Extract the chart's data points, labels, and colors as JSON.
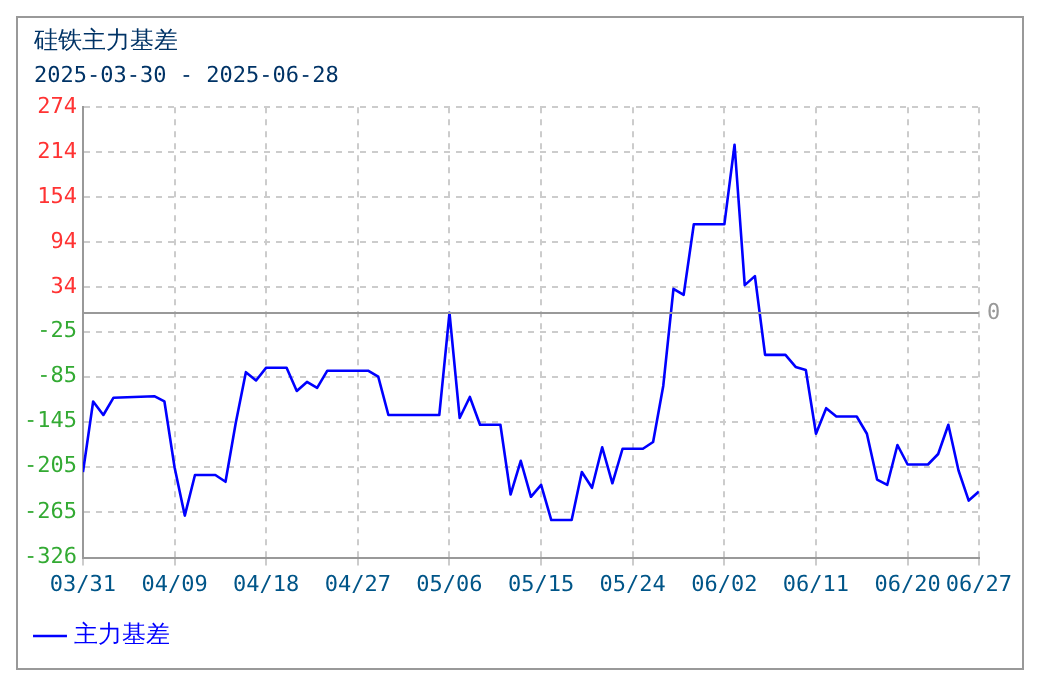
{
  "chart_data": {
    "type": "line",
    "title": "硅铁主力基差",
    "subtitle": "2025-03-30 - 2025-06-28",
    "x": [
      "2025-03-31",
      "2025-04-01",
      "2025-04-02",
      "2025-04-03",
      "2025-04-07",
      "2025-04-08",
      "2025-04-09",
      "2025-04-10",
      "2025-04-11",
      "2025-04-13",
      "2025-04-14",
      "2025-04-15",
      "2025-04-16",
      "2025-04-17",
      "2025-04-18",
      "2025-04-20",
      "2025-04-21",
      "2025-04-22",
      "2025-04-23",
      "2025-04-24",
      "2025-04-28",
      "2025-04-29",
      "2025-04-30",
      "2025-05-05",
      "2025-05-06",
      "2025-05-07",
      "2025-05-08",
      "2025-05-09",
      "2025-05-11",
      "2025-05-12",
      "2025-05-13",
      "2025-05-14",
      "2025-05-15",
      "2025-05-16",
      "2025-05-18",
      "2025-05-19",
      "2025-05-20",
      "2025-05-21",
      "2025-05-22",
      "2025-05-23",
      "2025-05-25",
      "2025-05-26",
      "2025-05-27",
      "2025-05-28",
      "2025-05-29",
      "2025-05-30",
      "2025-06-02",
      "2025-06-03",
      "2025-06-04",
      "2025-06-05",
      "2025-06-06",
      "2025-06-08",
      "2025-06-09",
      "2025-06-10",
      "2025-06-11",
      "2025-06-12",
      "2025-06-13",
      "2025-06-15",
      "2025-06-16",
      "2025-06-17",
      "2025-06-18",
      "2025-06-19",
      "2025-06-20",
      "2025-06-22",
      "2025-06-23",
      "2025-06-24",
      "2025-06-25",
      "2025-06-26",
      "2025-06-27"
    ],
    "series": [
      {
        "name": "主力基差",
        "color": "#0000ff",
        "values": [
          -212,
          -118,
          -136,
          -113,
          -111,
          -118,
          -206,
          -270,
          -216,
          -216,
          -225,
          -147,
          -79,
          -90,
          -73,
          -73,
          -104,
          -92,
          -100,
          -77,
          -77,
          -85,
          -136,
          -136,
          0,
          -140,
          -112,
          -149,
          -149,
          -242,
          -197,
          -245,
          -229,
          -276,
          -276,
          -212,
          -233,
          -179,
          -227,
          -181,
          -181,
          -172,
          -97,
          32,
          24,
          118,
          118,
          224,
          37,
          49,
          -56,
          -56,
          -72,
          -76,
          -161,
          -127,
          -138,
          -138,
          -161,
          -222,
          -229,
          -176,
          -202,
          -202,
          -188,
          -149,
          -210,
          -250,
          -238
        ]
      }
    ],
    "xlim": [
      "2025-03-31",
      "2025-06-27"
    ],
    "xticks": [
      {
        "value": "2025-03-31",
        "label": "03/31"
      },
      {
        "value": "2025-04-09",
        "label": "04/09"
      },
      {
        "value": "2025-04-18",
        "label": "04/18"
      },
      {
        "value": "2025-04-27",
        "label": "04/27"
      },
      {
        "value": "2025-05-06",
        "label": "05/06"
      },
      {
        "value": "2025-05-15",
        "label": "05/15"
      },
      {
        "value": "2025-05-24",
        "label": "05/24"
      },
      {
        "value": "2025-06-02",
        "label": "06/02"
      },
      {
        "value": "2025-06-11",
        "label": "06/11"
      },
      {
        "value": "2025-06-20",
        "label": "06/20"
      },
      {
        "value": "2025-06-27",
        "label": "06/27"
      }
    ],
    "ylim": [
      -326,
      274
    ],
    "yticks": [
      274,
      214,
      154,
      94,
      34,
      -25,
      -85,
      -145,
      -205,
      -265,
      -326
    ],
    "ref_lines": [
      {
        "axis": "y",
        "value": 0,
        "label": "0",
        "color": "#999999"
      }
    ],
    "grid": true,
    "legend": "bottom left",
    "marker": "none",
    "line_style": "solid"
  }
}
